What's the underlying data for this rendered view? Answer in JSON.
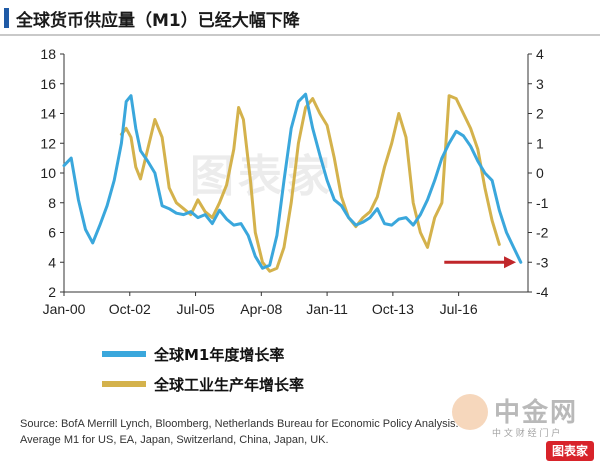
{
  "title": "全球货币供应量（M1）已经大幅下降",
  "watermark": {
    "center_text": "图表家",
    "brand_text": "中金网",
    "brand_sub": "中 文 财 经 门 户",
    "badge_text": "图表家"
  },
  "legend": [
    {
      "label": "全球M1年度增长率",
      "color": "#3aa7dc"
    },
    {
      "label": "全球工业生产年增长率",
      "color": "#d4b24c"
    }
  ],
  "source_lines": [
    "Source: BofA Merrill Lynch, Bloomberg, Netherlands Bureau for Economic Policy Analysis.",
    "Average M1 for US, EA, Japan, Switzerland, China, Japan, UK."
  ],
  "chart_data": {
    "type": "line",
    "title": "全球货币供应量（M1）已经大幅下降",
    "x_tick_labels": [
      "Jan-00",
      "Oct-02",
      "Jul-05",
      "Apr-08",
      "Jan-11",
      "Oct-13",
      "Jul-16"
    ],
    "x_tick_years": [
      2000.0,
      2002.75,
      2005.5,
      2008.25,
      2011.0,
      2013.75,
      2016.5
    ],
    "xlim": [
      2000.0,
      2019.4
    ],
    "left_axis": {
      "ylim": [
        2,
        18
      ],
      "ticks": [
        2,
        4,
        6,
        8,
        10,
        12,
        14,
        16,
        18
      ]
    },
    "right_axis": {
      "ylim": [
        -4,
        4
      ],
      "ticks": [
        -4,
        -3,
        -2,
        -1,
        0,
        1,
        2,
        3,
        4
      ]
    },
    "grid": false,
    "series": [
      {
        "name": "全球M1年度增长率",
        "axis": "left",
        "color": "#3aa7dc",
        "x": [
          2000.0,
          2000.3,
          2000.6,
          2000.9,
          2001.2,
          2001.5,
          2001.8,
          2002.1,
          2002.4,
          2002.6,
          2002.8,
          2003.0,
          2003.2,
          2003.5,
          2003.8,
          2004.1,
          2004.4,
          2004.7,
          2005.0,
          2005.3,
          2005.6,
          2005.9,
          2006.2,
          2006.5,
          2006.8,
          2007.1,
          2007.4,
          2007.7,
          2008.0,
          2008.3,
          2008.6,
          2008.9,
          2009.2,
          2009.5,
          2009.8,
          2010.1,
          2010.4,
          2010.7,
          2011.0,
          2011.3,
          2011.6,
          2011.9,
          2012.2,
          2012.5,
          2012.8,
          2013.1,
          2013.4,
          2013.7,
          2014.0,
          2014.3,
          2014.6,
          2014.9,
          2015.2,
          2015.5,
          2015.8,
          2016.1,
          2016.4,
          2016.7,
          2017.0,
          2017.3,
          2017.6,
          2017.9,
          2018.2,
          2018.5,
          2018.8,
          2019.1
        ],
        "values": [
          10.5,
          11.0,
          8.2,
          6.2,
          5.3,
          6.5,
          7.8,
          9.5,
          12.0,
          14.8,
          15.2,
          13.0,
          11.5,
          10.8,
          10.0,
          7.8,
          7.6,
          7.3,
          7.2,
          7.4,
          7.0,
          7.2,
          6.6,
          7.5,
          6.9,
          6.5,
          6.6,
          5.8,
          4.4,
          3.6,
          3.8,
          5.8,
          9.5,
          13.0,
          14.8,
          15.3,
          13.0,
          11.2,
          9.5,
          8.2,
          7.8,
          7.0,
          6.5,
          6.7,
          7.0,
          7.6,
          6.6,
          6.5,
          6.9,
          7.0,
          6.5,
          7.2,
          8.2,
          9.5,
          11.0,
          12.0,
          12.8,
          12.5,
          11.8,
          10.8,
          10.0,
          9.5,
          7.5,
          6.0,
          5.0,
          4.0
        ]
      },
      {
        "name": "全球工业生产年增长率",
        "axis": "right",
        "color": "#d4b24c",
        "x": [
          2002.4,
          2002.6,
          2002.8,
          2003.0,
          2003.2,
          2003.5,
          2003.8,
          2004.1,
          2004.4,
          2004.7,
          2005.0,
          2005.3,
          2005.6,
          2005.9,
          2006.2,
          2006.5,
          2006.8,
          2007.1,
          2007.3,
          2007.5,
          2007.8,
          2008.0,
          2008.3,
          2008.6,
          2008.9,
          2009.2,
          2009.5,
          2009.8,
          2010.1,
          2010.4,
          2010.7,
          2011.0,
          2011.3,
          2011.6,
          2011.9,
          2012.2,
          2012.5,
          2012.8,
          2013.1,
          2013.4,
          2013.7,
          2014.0,
          2014.3,
          2014.6,
          2014.9,
          2015.2,
          2015.5,
          2015.8,
          2016.1,
          2016.4,
          2016.7,
          2017.0,
          2017.3,
          2017.6,
          2017.9,
          2018.2
        ],
        "values": [
          1.3,
          1.5,
          1.2,
          0.2,
          -0.2,
          0.8,
          1.8,
          1.2,
          -0.5,
          -1.0,
          -1.2,
          -1.4,
          -0.9,
          -1.3,
          -1.5,
          -1.0,
          -0.4,
          0.8,
          2.2,
          1.8,
          -0.3,
          -2.0,
          -3.0,
          -3.3,
          -3.2,
          -2.5,
          -1.0,
          1.0,
          2.2,
          2.5,
          2.0,
          1.6,
          0.5,
          -0.8,
          -1.5,
          -1.8,
          -1.5,
          -1.3,
          -0.8,
          0.2,
          1.0,
          2.0,
          1.2,
          -1.0,
          -2.0,
          -2.5,
          -1.5,
          -1.0,
          2.6,
          2.5,
          2.0,
          1.5,
          0.8,
          -0.5,
          -1.6,
          -2.4
        ]
      }
    ],
    "annotations": [
      {
        "type": "arrow",
        "color": "#c0262a",
        "from": [
          2015.9,
          -3
        ],
        "to": [
          2018.9,
          -3
        ],
        "axis": "right"
      }
    ]
  }
}
